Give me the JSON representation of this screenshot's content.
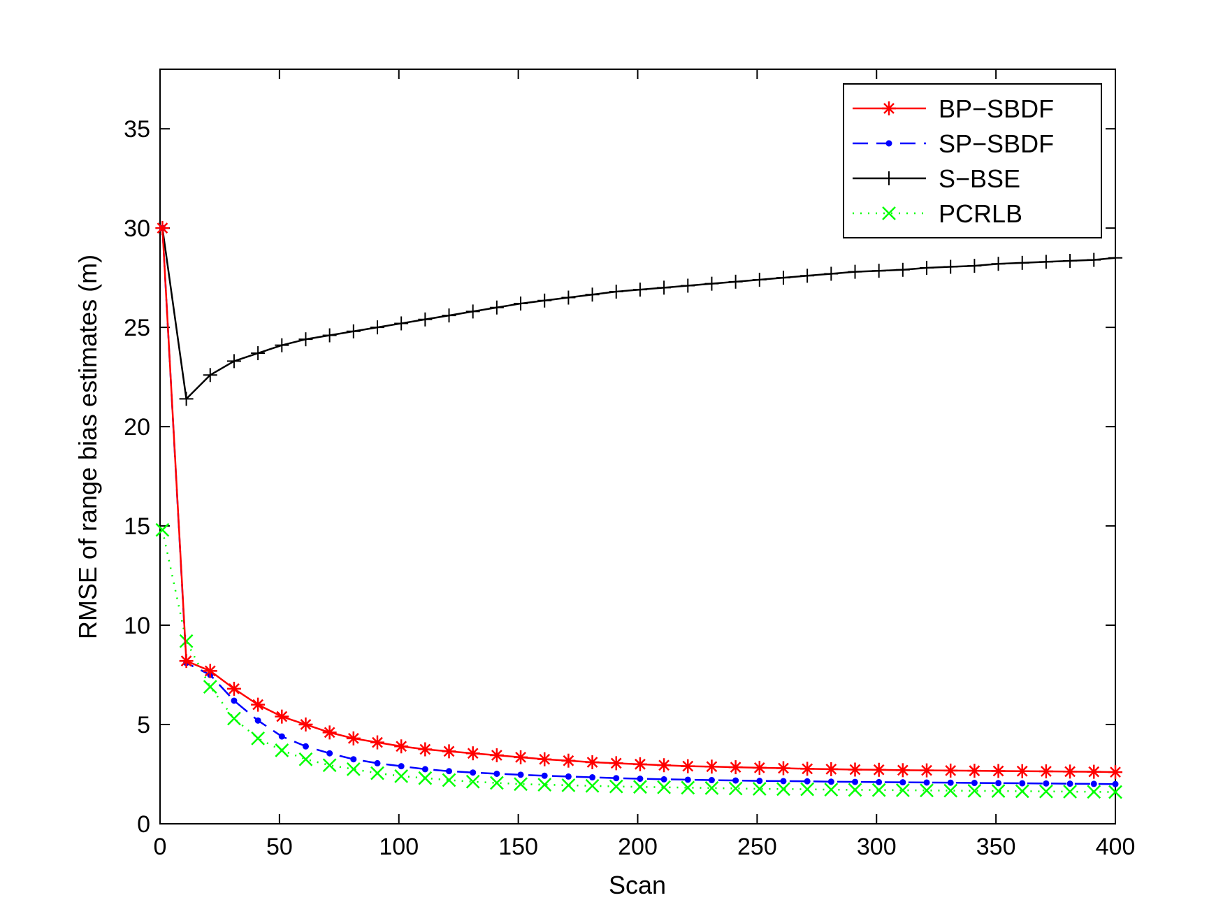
{
  "chart_data": {
    "type": "line",
    "xlabel": "Scan",
    "ylabel": "RMSE of range bias estimates (m)",
    "xlim": [
      0,
      400
    ],
    "ylim": [
      0,
      38
    ],
    "xticks": [
      0,
      50,
      100,
      150,
      200,
      250,
      300,
      350,
      400
    ],
    "yticks": [
      0,
      5,
      10,
      15,
      20,
      25,
      30,
      35
    ],
    "grid": false,
    "legend": "top-right",
    "x": [
      1,
      11,
      21,
      31,
      41,
      51,
      61,
      71,
      81,
      91,
      101,
      111,
      121,
      131,
      141,
      151,
      161,
      171,
      181,
      191,
      201,
      211,
      221,
      231,
      241,
      251,
      261,
      271,
      281,
      291,
      301,
      311,
      321,
      331,
      341,
      351,
      361,
      371,
      381,
      391,
      400
    ],
    "series": [
      {
        "name": "BP−SBDF",
        "color": "#ff0000",
        "line": "solid",
        "marker": "asterisk",
        "values": [
          30.0,
          8.2,
          7.7,
          6.8,
          6.0,
          5.4,
          5.0,
          4.6,
          4.3,
          4.1,
          3.9,
          3.75,
          3.65,
          3.55,
          3.45,
          3.35,
          3.25,
          3.18,
          3.1,
          3.05,
          3.0,
          2.95,
          2.9,
          2.88,
          2.85,
          2.82,
          2.8,
          2.77,
          2.75,
          2.73,
          2.72,
          2.7,
          2.69,
          2.68,
          2.67,
          2.66,
          2.65,
          2.64,
          2.63,
          2.62,
          2.6
        ]
      },
      {
        "name": "SP−SBDF",
        "color": "#0000ff",
        "line": "dashed",
        "marker": "dot",
        "values": [
          30.0,
          8.1,
          7.5,
          6.2,
          5.2,
          4.4,
          3.9,
          3.55,
          3.25,
          3.05,
          2.9,
          2.75,
          2.65,
          2.58,
          2.52,
          2.47,
          2.42,
          2.38,
          2.34,
          2.3,
          2.27,
          2.24,
          2.22,
          2.2,
          2.18,
          2.16,
          2.15,
          2.14,
          2.12,
          2.11,
          2.1,
          2.09,
          2.08,
          2.07,
          2.06,
          2.05,
          2.04,
          2.03,
          2.02,
          2.01,
          2.0
        ]
      },
      {
        "name": "S−BSE",
        "color": "#000000",
        "line": "solid",
        "marker": "plus",
        "values": [
          30.0,
          21.4,
          22.6,
          23.3,
          23.7,
          24.1,
          24.4,
          24.6,
          24.8,
          25.0,
          25.2,
          25.4,
          25.6,
          25.8,
          26.0,
          26.2,
          26.35,
          26.5,
          26.65,
          26.8,
          26.9,
          27.0,
          27.1,
          27.2,
          27.3,
          27.4,
          27.5,
          27.6,
          27.7,
          27.8,
          27.85,
          27.9,
          28.0,
          28.05,
          28.1,
          28.2,
          28.25,
          28.3,
          28.35,
          28.4,
          28.5
        ]
      },
      {
        "name": "PCRLB",
        "color": "#00ff00",
        "line": "dotted",
        "marker": "x",
        "values": [
          14.8,
          9.2,
          6.9,
          5.3,
          4.3,
          3.7,
          3.25,
          2.95,
          2.75,
          2.55,
          2.4,
          2.3,
          2.2,
          2.12,
          2.06,
          2.0,
          1.97,
          1.94,
          1.91,
          1.88,
          1.86,
          1.84,
          1.82,
          1.8,
          1.78,
          1.76,
          1.75,
          1.74,
          1.72,
          1.71,
          1.7,
          1.69,
          1.68,
          1.67,
          1.66,
          1.65,
          1.64,
          1.63,
          1.62,
          1.61,
          1.6
        ]
      }
    ]
  }
}
